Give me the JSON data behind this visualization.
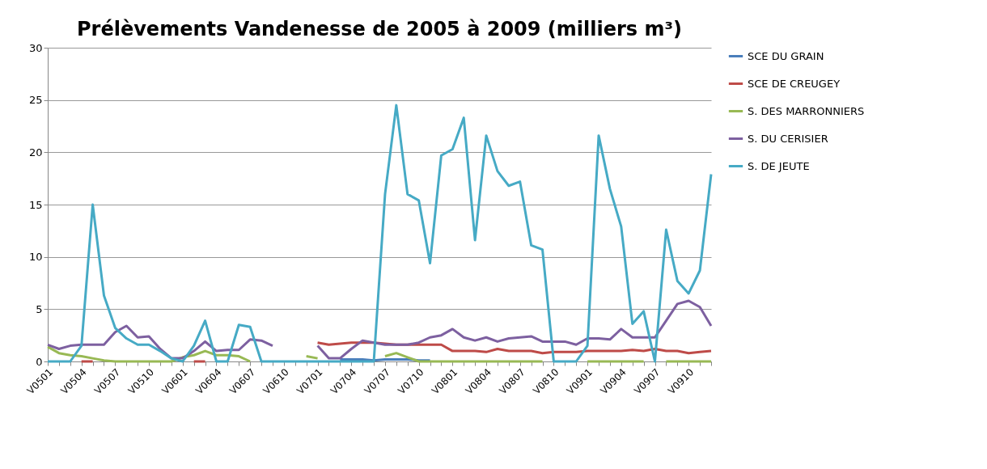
{
  "chart_data": {
    "type": "line",
    "title": "Prélèvements Vandenesse de 2005 à 2009 (milliers m³)",
    "categories": [
      "V0501",
      null,
      null,
      "V0504",
      null,
      null,
      "V0507",
      null,
      null,
      "V0510",
      null,
      null,
      "V0601",
      null,
      null,
      "V0604",
      null,
      null,
      "V0607",
      null,
      null,
      "V0610",
      null,
      null,
      "V0701",
      null,
      null,
      "V0704",
      null,
      null,
      "V0707",
      null,
      null,
      "V0710",
      null,
      null,
      "V0801",
      null,
      null,
      "V0804",
      null,
      null,
      "V0807",
      null,
      null,
      "V0810",
      null,
      null,
      "V0901",
      null,
      null,
      "V0904",
      null,
      null,
      "V0907",
      null,
      null,
      "V0910",
      null,
      null
    ],
    "series": [
      {
        "name": "SCE DU GRAIN",
        "color": "#4a7ebb",
        "values": [
          null,
          null,
          null,
          null,
          null,
          null,
          null,
          null,
          null,
          null,
          null,
          null,
          null,
          null,
          null,
          null,
          null,
          null,
          null,
          null,
          null,
          null,
          null,
          null,
          null,
          null,
          0.2,
          0.2,
          0.2,
          0.1,
          0.2,
          0.2,
          0.2,
          0.1,
          0.1,
          null,
          null,
          null,
          null,
          null,
          null,
          null,
          null,
          null,
          null,
          null,
          null,
          null,
          null,
          null,
          null,
          null,
          null,
          null,
          null,
          null,
          null,
          null,
          null,
          null
        ]
      },
      {
        "name": "SCE DE CREUGEY",
        "color": "#be4b48",
        "values": [
          null,
          null,
          null,
          0,
          0,
          null,
          null,
          null,
          null,
          null,
          null,
          null,
          null,
          0,
          0,
          null,
          null,
          null,
          null,
          null,
          null,
          null,
          null,
          null,
          1.8,
          1.6,
          1.7,
          1.8,
          1.8,
          1.8,
          1.7,
          1.6,
          1.6,
          1.6,
          1.6,
          1.6,
          1.0,
          1.0,
          1.0,
          0.9,
          1.2,
          1.0,
          1.0,
          1.0,
          0.8,
          0.9,
          0.9,
          0.9,
          1.0,
          1.0,
          1.0,
          1.0,
          1.1,
          1.0,
          1.2,
          1.0,
          1.0,
          0.8,
          0.9,
          1.0
        ]
      },
      {
        "name": "S. DES MARRONNIERS",
        "color": "#98b954",
        "values": [
          1.4,
          0.8,
          0.6,
          0.5,
          0.3,
          0.1,
          0,
          0,
          0,
          0,
          0,
          0,
          0.4,
          0.6,
          1.0,
          0.6,
          0.6,
          0.5,
          0,
          null,
          null,
          null,
          null,
          0.5,
          0.3,
          null,
          null,
          null,
          null,
          null,
          0.5,
          0.8,
          0.4,
          0,
          0,
          0,
          0,
          0,
          0,
          0,
          0,
          0,
          0,
          0,
          0,
          null,
          null,
          null,
          0,
          0,
          0,
          0,
          0,
          0,
          null,
          0,
          0,
          0,
          0,
          0
        ]
      },
      {
        "name": "S. DU CERISIER",
        "color": "#7d60a0",
        "values": [
          1.6,
          1.2,
          1.5,
          1.6,
          1.6,
          1.6,
          2.8,
          3.4,
          2.3,
          2.4,
          1.2,
          0.3,
          0.3,
          1.0,
          1.9,
          1.0,
          1.1,
          1.1,
          2.1,
          2.0,
          1.5,
          null,
          null,
          null,
          1.5,
          0.3,
          0.3,
          1.2,
          2.0,
          1.8,
          1.6,
          1.6,
          1.6,
          1.8,
          2.3,
          2.5,
          3.1,
          2.3,
          2.0,
          2.3,
          1.9,
          2.2,
          2.3,
          2.4,
          1.9,
          1.9,
          1.9,
          1.6,
          2.2,
          2.2,
          2.1,
          3.1,
          2.3,
          2.3,
          2.3,
          3.9,
          5.5,
          5.8,
          5.2,
          3.4
        ]
      },
      {
        "name": "S. DE JEUTE",
        "color": "#46aac5",
        "values": [
          0,
          0,
          0,
          1.5,
          15,
          6.3,
          3.2,
          2.2,
          1.6,
          1.6,
          1.0,
          0.3,
          0,
          1.5,
          3.9,
          0,
          0,
          3.5,
          3.3,
          0,
          0,
          0,
          0,
          0,
          0,
          0,
          0,
          0,
          0,
          0,
          16,
          24.5,
          16,
          15.4,
          9.4,
          19.7,
          20.3,
          23.3,
          11.6,
          21.6,
          18.2,
          16.8,
          17.2,
          11.1,
          10.7,
          0,
          0,
          0,
          1.5,
          21.6,
          16.5,
          12.9,
          3.6,
          4.8,
          0,
          12.6,
          7.7,
          6.5,
          8.7,
          17.9
        ]
      }
    ],
    "ylim": [
      0,
      30
    ],
    "yticks": [
      0,
      5,
      10,
      15,
      20,
      25,
      30
    ],
    "grid": "y",
    "legend": "right",
    "marker": "none",
    "line_style": "solid"
  }
}
